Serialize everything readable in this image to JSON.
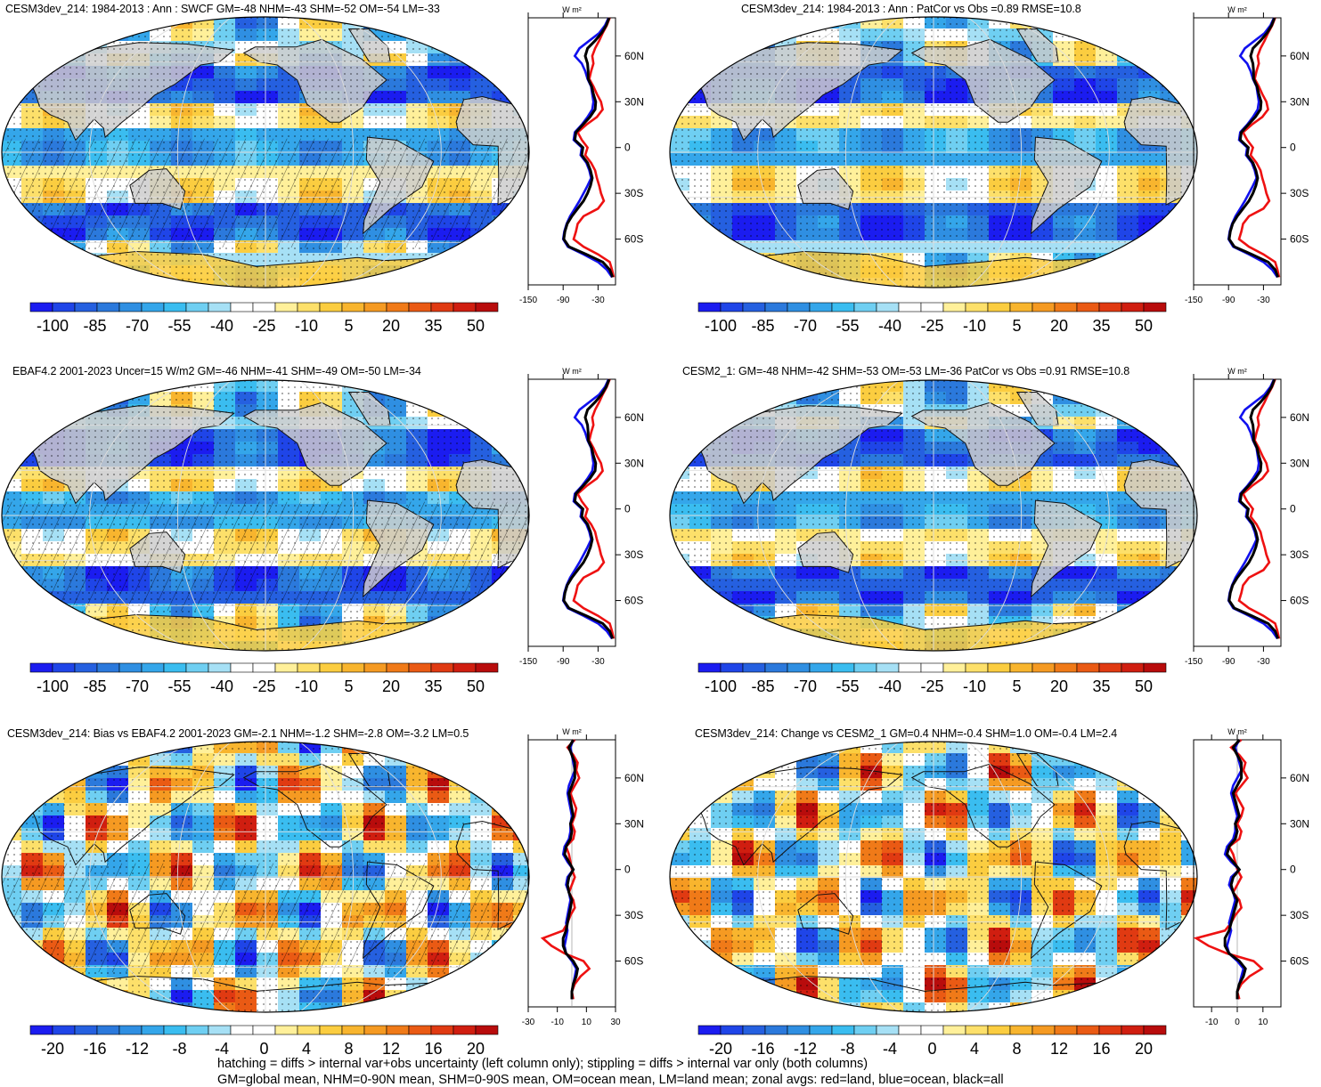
{
  "panels": [
    {
      "title": "CESM3dev_214: 1984-2013 : Ann : SWCF GM=-48 NHM=-43 SHM=-52 OM=-54 LM=-33",
      "kind": "abs",
      "hatch": true
    },
    {
      "title": "CESM3dev_214: 1984-2013 : Ann : PatCor vs Obs =0.89 RMSE=10.8",
      "kind": "abs",
      "hatch": false
    },
    {
      "title": "EBAF4.2 2001-2023 Uncer=15 W/m2 GM=-46 NHM=-41 SHM=-49 OM=-50 LM=-34",
      "kind": "abs",
      "hatch": true
    },
    {
      "title": "CESM2_1: GM=-48 NHM=-42 SHM=-53 OM=-53 LM=-36 PatCor vs Obs =0.91 RMSE=10.8",
      "kind": "abs",
      "hatch": false
    },
    {
      "title": "CESM3dev_214: Bias vs EBAF4.2 2001-2023 GM=-2.1 NHM=-1.2 SHM=-2.8 OM=-3.2 LM=0.5",
      "kind": "diff",
      "hatch": true
    },
    {
      "title": "CESM3dev_214: Change vs CESM2_1 GM=0.4 NHM=-0.4 SHM=1.0 OM=-0.4 LM=2.4",
      "kind": "diff",
      "hatch": false
    }
  ],
  "chart_data": {
    "type": "heatmap",
    "colorbar_abs": {
      "ticks": [
        "-100",
        "-85",
        "-70",
        "-55",
        "-40",
        "-25",
        "-10",
        "5",
        "20",
        "35",
        "50"
      ],
      "colors": [
        "#1b1cf0",
        "#1f45e8",
        "#2560e0",
        "#2b79dc",
        "#2f8fe2",
        "#34a6ea",
        "#3abdf0",
        "#6fcff2",
        "#a6e0f5",
        "#ffffff",
        "#ffffff",
        "#fff09a",
        "#fde06a",
        "#fbcd40",
        "#f8b52e",
        "#f59a22",
        "#f07a18",
        "#ea5a14",
        "#e03a12",
        "#d01e10",
        "#b80c0c"
      ]
    },
    "colorbar_diff": {
      "ticks": [
        "-20",
        "-16",
        "-12",
        "-8",
        "-4",
        "0",
        "4",
        "8",
        "12",
        "16",
        "20"
      ],
      "colors": [
        "#1b1cf0",
        "#1f45e8",
        "#2560e0",
        "#2b79dc",
        "#2f8fe2",
        "#34a6ea",
        "#3abdf0",
        "#6fcff2",
        "#a6e0f5",
        "#ffffff",
        "#ffffff",
        "#fff09a",
        "#fde06a",
        "#fbcd40",
        "#f8b52e",
        "#f59a22",
        "#f07a18",
        "#ea5a14",
        "#e03a12",
        "#d01e10",
        "#b80c0c"
      ]
    },
    "zonal": {
      "unit": "W m²",
      "lat_ticks": [
        "60N",
        "30N",
        "0",
        "30S",
        "60S"
      ],
      "x_ticks_abs": [
        "-150",
        "-90",
        "-30"
      ],
      "x_ticks_diff_left": [
        "-30",
        "-10",
        "10",
        "30"
      ],
      "x_ticks_diff_right": [
        "-10",
        "0",
        "10"
      ],
      "series_colors": {
        "land": "#ee1111",
        "ocean": "#1111ee",
        "all": "#000000"
      },
      "lat": [
        85,
        80,
        75,
        70,
        65,
        60,
        55,
        50,
        45,
        40,
        35,
        30,
        25,
        20,
        15,
        10,
        5,
        0,
        -5,
        -10,
        -15,
        -20,
        -25,
        -30,
        -35,
        -40,
        -45,
        -50,
        -55,
        -60,
        -65,
        -70,
        -75,
        -80,
        -85
      ],
      "abs": {
        "land": [
          -10,
          -15,
          -22,
          -28,
          -35,
          -40,
          -38,
          -42,
          -45,
          -38,
          -32,
          -25,
          -22,
          -32,
          -50,
          -65,
          -58,
          -48,
          -52,
          -42,
          -35,
          -32,
          -28,
          -25,
          -20,
          -30,
          -55,
          -65,
          -68,
          -72,
          -55,
          -30,
          -10,
          -6,
          -3
        ],
        "ocean": [
          -12,
          -18,
          -28,
          -45,
          -62,
          -70,
          -58,
          -52,
          -48,
          -42,
          -40,
          -38,
          -40,
          -48,
          -58,
          -70,
          -72,
          -58,
          -60,
          -50,
          -45,
          -42,
          -48,
          -55,
          -62,
          -70,
          -78,
          -84,
          -88,
          -90,
          -82,
          -55,
          -30,
          -15,
          -6
        ],
        "all": [
          -11,
          -16,
          -24,
          -35,
          -48,
          -52,
          -48,
          -47,
          -47,
          -41,
          -38,
          -34,
          -35,
          -44,
          -56,
          -68,
          -70,
          -56,
          -58,
          -48,
          -43,
          -40,
          -43,
          -48,
          -55,
          -65,
          -75,
          -83,
          -87,
          -89,
          -80,
          -50,
          -22,
          -10,
          -5
        ]
      },
      "diff": {
        "land": [
          2,
          -3,
          1,
          4,
          3,
          5,
          2,
          -1,
          1,
          3,
          2,
          0,
          2,
          1,
          -4,
          -2,
          -1,
          0,
          2,
          0,
          -2,
          1,
          2,
          -1,
          -3,
          -6,
          -20,
          -14,
          -5,
          8,
          12,
          6,
          2,
          0,
          1
        ],
        "ocean": [
          1,
          -1,
          0,
          1,
          2,
          0,
          -2,
          -3,
          -2,
          -1,
          0,
          -1,
          -1,
          -2,
          -5,
          -6,
          -3,
          1,
          -3,
          -4,
          -2,
          -1,
          -2,
          -3,
          -4,
          -3,
          -4,
          -5,
          -4,
          0,
          3,
          2,
          1,
          0,
          0
        ],
        "all": [
          1,
          -2,
          0,
          2,
          2,
          2,
          0,
          -2,
          -1,
          0,
          1,
          -1,
          0,
          -1,
          -4,
          -5,
          -2,
          1,
          -2,
          -3,
          -2,
          0,
          -1,
          -2,
          -3,
          -4,
          -6,
          -6,
          -4,
          1,
          4,
          3,
          1,
          0,
          0
        ]
      }
    }
  },
  "footer": {
    "line1": "hatching = diffs > internal var+obs uncertainty (left column only); stippling = diffs > internal var only (both columns)",
    "line2": "GM=global mean, NHM=0-90N mean, SHM=0-90S mean, OM=ocean mean, LM=land mean; zonal avgs: red=land, blue=ocean, black=all"
  }
}
